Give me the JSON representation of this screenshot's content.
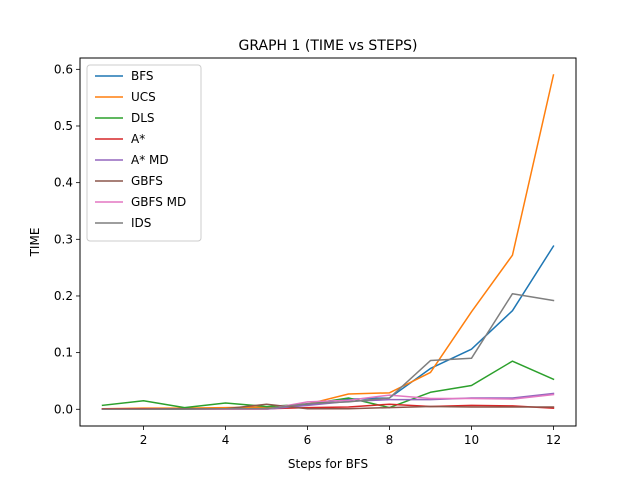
{
  "chart_data": {
    "type": "line",
    "title": "GRAPH 1 (TIME vs STEPS)",
    "xlabel": "Steps for BFS",
    "ylabel": "TIME",
    "xlim": [
      0.45,
      12.55
    ],
    "ylim": [
      -0.0295,
      0.62
    ],
    "xticks": [
      2,
      4,
      6,
      8,
      10,
      12
    ],
    "yticks": [
      0.0,
      0.1,
      0.2,
      0.3,
      0.4,
      0.5,
      0.6
    ],
    "ytick_labels": [
      "0.0",
      "0.1",
      "0.2",
      "0.3",
      "0.4",
      "0.5",
      "0.6"
    ],
    "grid": false,
    "legend_position": "upper-left",
    "x": [
      1,
      2,
      3,
      4,
      5,
      6,
      7,
      8,
      9,
      10,
      11,
      12
    ],
    "series": [
      {
        "name": "BFS",
        "color": "#1f77b4",
        "values": [
          0.001,
          0.001,
          0.001,
          0.002,
          0.003,
          0.008,
          0.018,
          0.02,
          0.072,
          0.106,
          0.174,
          0.288
        ]
      },
      {
        "name": "UCS",
        "color": "#ff7f0e",
        "values": [
          0.001,
          0.002,
          0.002,
          0.003,
          0.004,
          0.009,
          0.027,
          0.029,
          0.065,
          0.172,
          0.272,
          0.59
        ]
      },
      {
        "name": "DLS",
        "color": "#2ca02c",
        "values": [
          0.007,
          0.015,
          0.003,
          0.011,
          0.005,
          0.009,
          0.02,
          0.003,
          0.03,
          0.042,
          0.085,
          0.053
        ]
      },
      {
        "name": "A*",
        "color": "#d62728",
        "values": [
          0.001,
          0.001,
          0.001,
          0.001,
          0.001,
          0.003,
          0.004,
          0.009,
          0.005,
          0.007,
          0.006,
          0.002
        ]
      },
      {
        "name": "A* MD",
        "color": "#9467bd",
        "values": [
          0.0,
          0.0,
          0.001,
          0.001,
          0.0,
          0.007,
          0.014,
          0.017,
          0.017,
          0.02,
          0.02,
          0.028
        ]
      },
      {
        "name": "GBFS",
        "color": "#8c564b",
        "values": [
          0.0,
          0.0,
          0.001,
          0.001,
          0.009,
          0.001,
          0.001,
          0.003,
          0.005,
          0.004,
          0.004,
          0.004
        ]
      },
      {
        "name": "GBFS MD",
        "color": "#e377c2",
        "values": [
          0.0,
          0.0,
          0.0,
          0.0,
          0.0,
          0.013,
          0.016,
          0.025,
          0.019,
          0.019,
          0.018,
          0.026
        ]
      },
      {
        "name": "IDS",
        "color": "#7f7f7f",
        "values": [
          0.0,
          0.0,
          0.0,
          0.001,
          0.001,
          0.01,
          0.013,
          0.02,
          0.086,
          0.09,
          0.204,
          0.192
        ]
      }
    ]
  }
}
